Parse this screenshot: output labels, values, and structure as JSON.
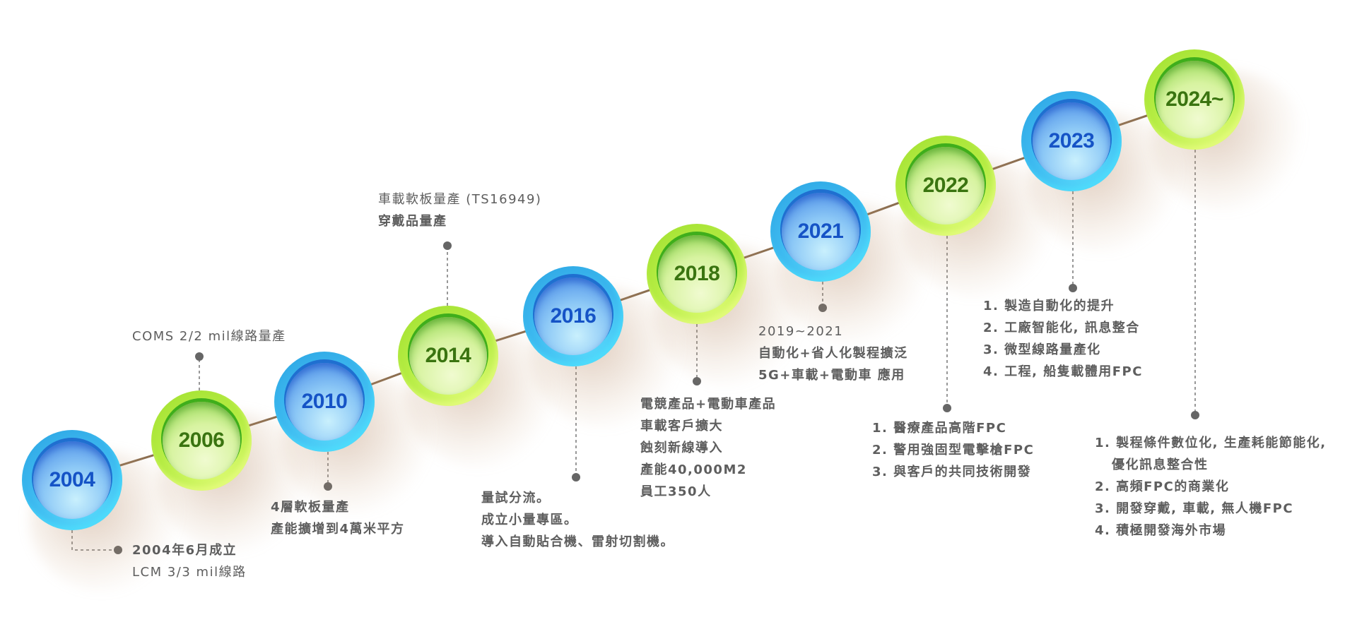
{
  "colors": {
    "blue_ring": "#3cb8ef",
    "blue_text": "#1553c6",
    "green_ring": "#b4ec42",
    "green_text": "#3a7410",
    "connector": "#8b6e50",
    "text": "#5e5e5e"
  },
  "milestones": [
    {
      "year": "2004",
      "color": "blue",
      "lines": [
        "2004年6月成立",
        "LCM 3/3 mil線路"
      ]
    },
    {
      "year": "2006",
      "color": "green",
      "lines": [
        "COMS 2/2 mil線路量產"
      ]
    },
    {
      "year": "2010",
      "color": "blue",
      "lines": [
        "4層軟板量產",
        "產能擴增到4萬米平方"
      ]
    },
    {
      "year": "2014",
      "color": "green",
      "lines": [
        "車載軟板量產 (TS16949)",
        "穿戴品量產"
      ]
    },
    {
      "year": "2016",
      "color": "blue",
      "lines": [
        "量試分流。",
        "成立小量專區。",
        "導入自動貼合機、雷射切割機。"
      ]
    },
    {
      "year": "2018",
      "color": "green",
      "lines": [
        "電競產品+電動車產品",
        "車載客戶擴大",
        "蝕刻新線導入",
        "產能40,000M2",
        "員工350人"
      ]
    },
    {
      "year": "2021",
      "color": "blue",
      "lines": [
        "2019~2021",
        "自動化+省人化製程擴泛",
        "5G+車載+電動車 應用"
      ]
    },
    {
      "year": "2022",
      "color": "green",
      "lines": [
        "1. 醫療產品高階FPC",
        "2. 警用強固型電擊槍FPC",
        "3. 與客戶的共同技術開發"
      ]
    },
    {
      "year": "2023",
      "color": "blue",
      "lines": [
        "1. 製造自動化的提升",
        "2. 工廠智能化, 訊息整合",
        "3. 微型線路量產化",
        "4. 工程, 船隻載體用FPC"
      ]
    },
    {
      "year": "2024~",
      "color": "green",
      "lines": [
        "1. 製程條件數位化, 生產耗能節能化,",
        "優化訊息整合性",
        "2. 高頻FPC的商業化",
        "3. 開發穿戴, 車載, 無人機FPC",
        "4. 積極開發海外市場"
      ]
    }
  ]
}
